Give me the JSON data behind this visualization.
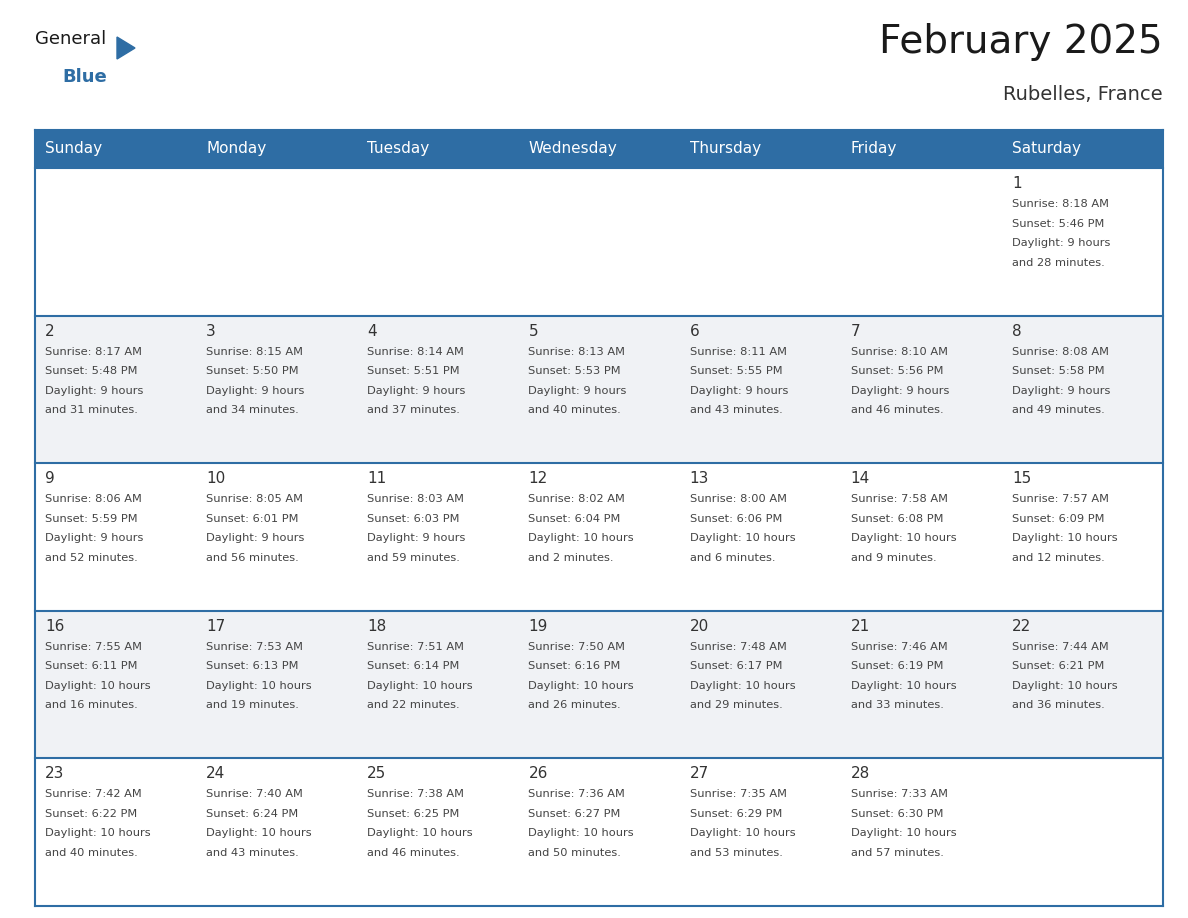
{
  "title": "February 2025",
  "subtitle": "Rubelles, France",
  "days_of_week": [
    "Sunday",
    "Monday",
    "Tuesday",
    "Wednesday",
    "Thursday",
    "Friday",
    "Saturday"
  ],
  "header_bg_color": "#2e6da4",
  "header_text_color": "#ffffff",
  "cell_bg_color": "#ffffff",
  "cell_bg_alt": "#f0f2f5",
  "row_divider_color": "#2e6da4",
  "title_color": "#1a1a1a",
  "subtitle_color": "#333333",
  "day_num_color": "#333333",
  "cell_text_color": "#444444",
  "logo_general_color": "#1a1a1a",
  "logo_blue_color": "#2e6da4",
  "fig_width": 11.88,
  "fig_height": 9.18,
  "weeks": [
    [
      {
        "day": null,
        "info": ""
      },
      {
        "day": null,
        "info": ""
      },
      {
        "day": null,
        "info": ""
      },
      {
        "day": null,
        "info": ""
      },
      {
        "day": null,
        "info": ""
      },
      {
        "day": null,
        "info": ""
      },
      {
        "day": 1,
        "info": "Sunrise: 8:18 AM\nSunset: 5:46 PM\nDaylight: 9 hours\nand 28 minutes."
      }
    ],
    [
      {
        "day": 2,
        "info": "Sunrise: 8:17 AM\nSunset: 5:48 PM\nDaylight: 9 hours\nand 31 minutes."
      },
      {
        "day": 3,
        "info": "Sunrise: 8:15 AM\nSunset: 5:50 PM\nDaylight: 9 hours\nand 34 minutes."
      },
      {
        "day": 4,
        "info": "Sunrise: 8:14 AM\nSunset: 5:51 PM\nDaylight: 9 hours\nand 37 minutes."
      },
      {
        "day": 5,
        "info": "Sunrise: 8:13 AM\nSunset: 5:53 PM\nDaylight: 9 hours\nand 40 minutes."
      },
      {
        "day": 6,
        "info": "Sunrise: 8:11 AM\nSunset: 5:55 PM\nDaylight: 9 hours\nand 43 minutes."
      },
      {
        "day": 7,
        "info": "Sunrise: 8:10 AM\nSunset: 5:56 PM\nDaylight: 9 hours\nand 46 minutes."
      },
      {
        "day": 8,
        "info": "Sunrise: 8:08 AM\nSunset: 5:58 PM\nDaylight: 9 hours\nand 49 minutes."
      }
    ],
    [
      {
        "day": 9,
        "info": "Sunrise: 8:06 AM\nSunset: 5:59 PM\nDaylight: 9 hours\nand 52 minutes."
      },
      {
        "day": 10,
        "info": "Sunrise: 8:05 AM\nSunset: 6:01 PM\nDaylight: 9 hours\nand 56 minutes."
      },
      {
        "day": 11,
        "info": "Sunrise: 8:03 AM\nSunset: 6:03 PM\nDaylight: 9 hours\nand 59 minutes."
      },
      {
        "day": 12,
        "info": "Sunrise: 8:02 AM\nSunset: 6:04 PM\nDaylight: 10 hours\nand 2 minutes."
      },
      {
        "day": 13,
        "info": "Sunrise: 8:00 AM\nSunset: 6:06 PM\nDaylight: 10 hours\nand 6 minutes."
      },
      {
        "day": 14,
        "info": "Sunrise: 7:58 AM\nSunset: 6:08 PM\nDaylight: 10 hours\nand 9 minutes."
      },
      {
        "day": 15,
        "info": "Sunrise: 7:57 AM\nSunset: 6:09 PM\nDaylight: 10 hours\nand 12 minutes."
      }
    ],
    [
      {
        "day": 16,
        "info": "Sunrise: 7:55 AM\nSunset: 6:11 PM\nDaylight: 10 hours\nand 16 minutes."
      },
      {
        "day": 17,
        "info": "Sunrise: 7:53 AM\nSunset: 6:13 PM\nDaylight: 10 hours\nand 19 minutes."
      },
      {
        "day": 18,
        "info": "Sunrise: 7:51 AM\nSunset: 6:14 PM\nDaylight: 10 hours\nand 22 minutes."
      },
      {
        "day": 19,
        "info": "Sunrise: 7:50 AM\nSunset: 6:16 PM\nDaylight: 10 hours\nand 26 minutes."
      },
      {
        "day": 20,
        "info": "Sunrise: 7:48 AM\nSunset: 6:17 PM\nDaylight: 10 hours\nand 29 minutes."
      },
      {
        "day": 21,
        "info": "Sunrise: 7:46 AM\nSunset: 6:19 PM\nDaylight: 10 hours\nand 33 minutes."
      },
      {
        "day": 22,
        "info": "Sunrise: 7:44 AM\nSunset: 6:21 PM\nDaylight: 10 hours\nand 36 minutes."
      }
    ],
    [
      {
        "day": 23,
        "info": "Sunrise: 7:42 AM\nSunset: 6:22 PM\nDaylight: 10 hours\nand 40 minutes."
      },
      {
        "day": 24,
        "info": "Sunrise: 7:40 AM\nSunset: 6:24 PM\nDaylight: 10 hours\nand 43 minutes."
      },
      {
        "day": 25,
        "info": "Sunrise: 7:38 AM\nSunset: 6:25 PM\nDaylight: 10 hours\nand 46 minutes."
      },
      {
        "day": 26,
        "info": "Sunrise: 7:36 AM\nSunset: 6:27 PM\nDaylight: 10 hours\nand 50 minutes."
      },
      {
        "day": 27,
        "info": "Sunrise: 7:35 AM\nSunset: 6:29 PM\nDaylight: 10 hours\nand 53 minutes."
      },
      {
        "day": 28,
        "info": "Sunrise: 7:33 AM\nSunset: 6:30 PM\nDaylight: 10 hours\nand 57 minutes."
      },
      {
        "day": null,
        "info": ""
      }
    ]
  ]
}
